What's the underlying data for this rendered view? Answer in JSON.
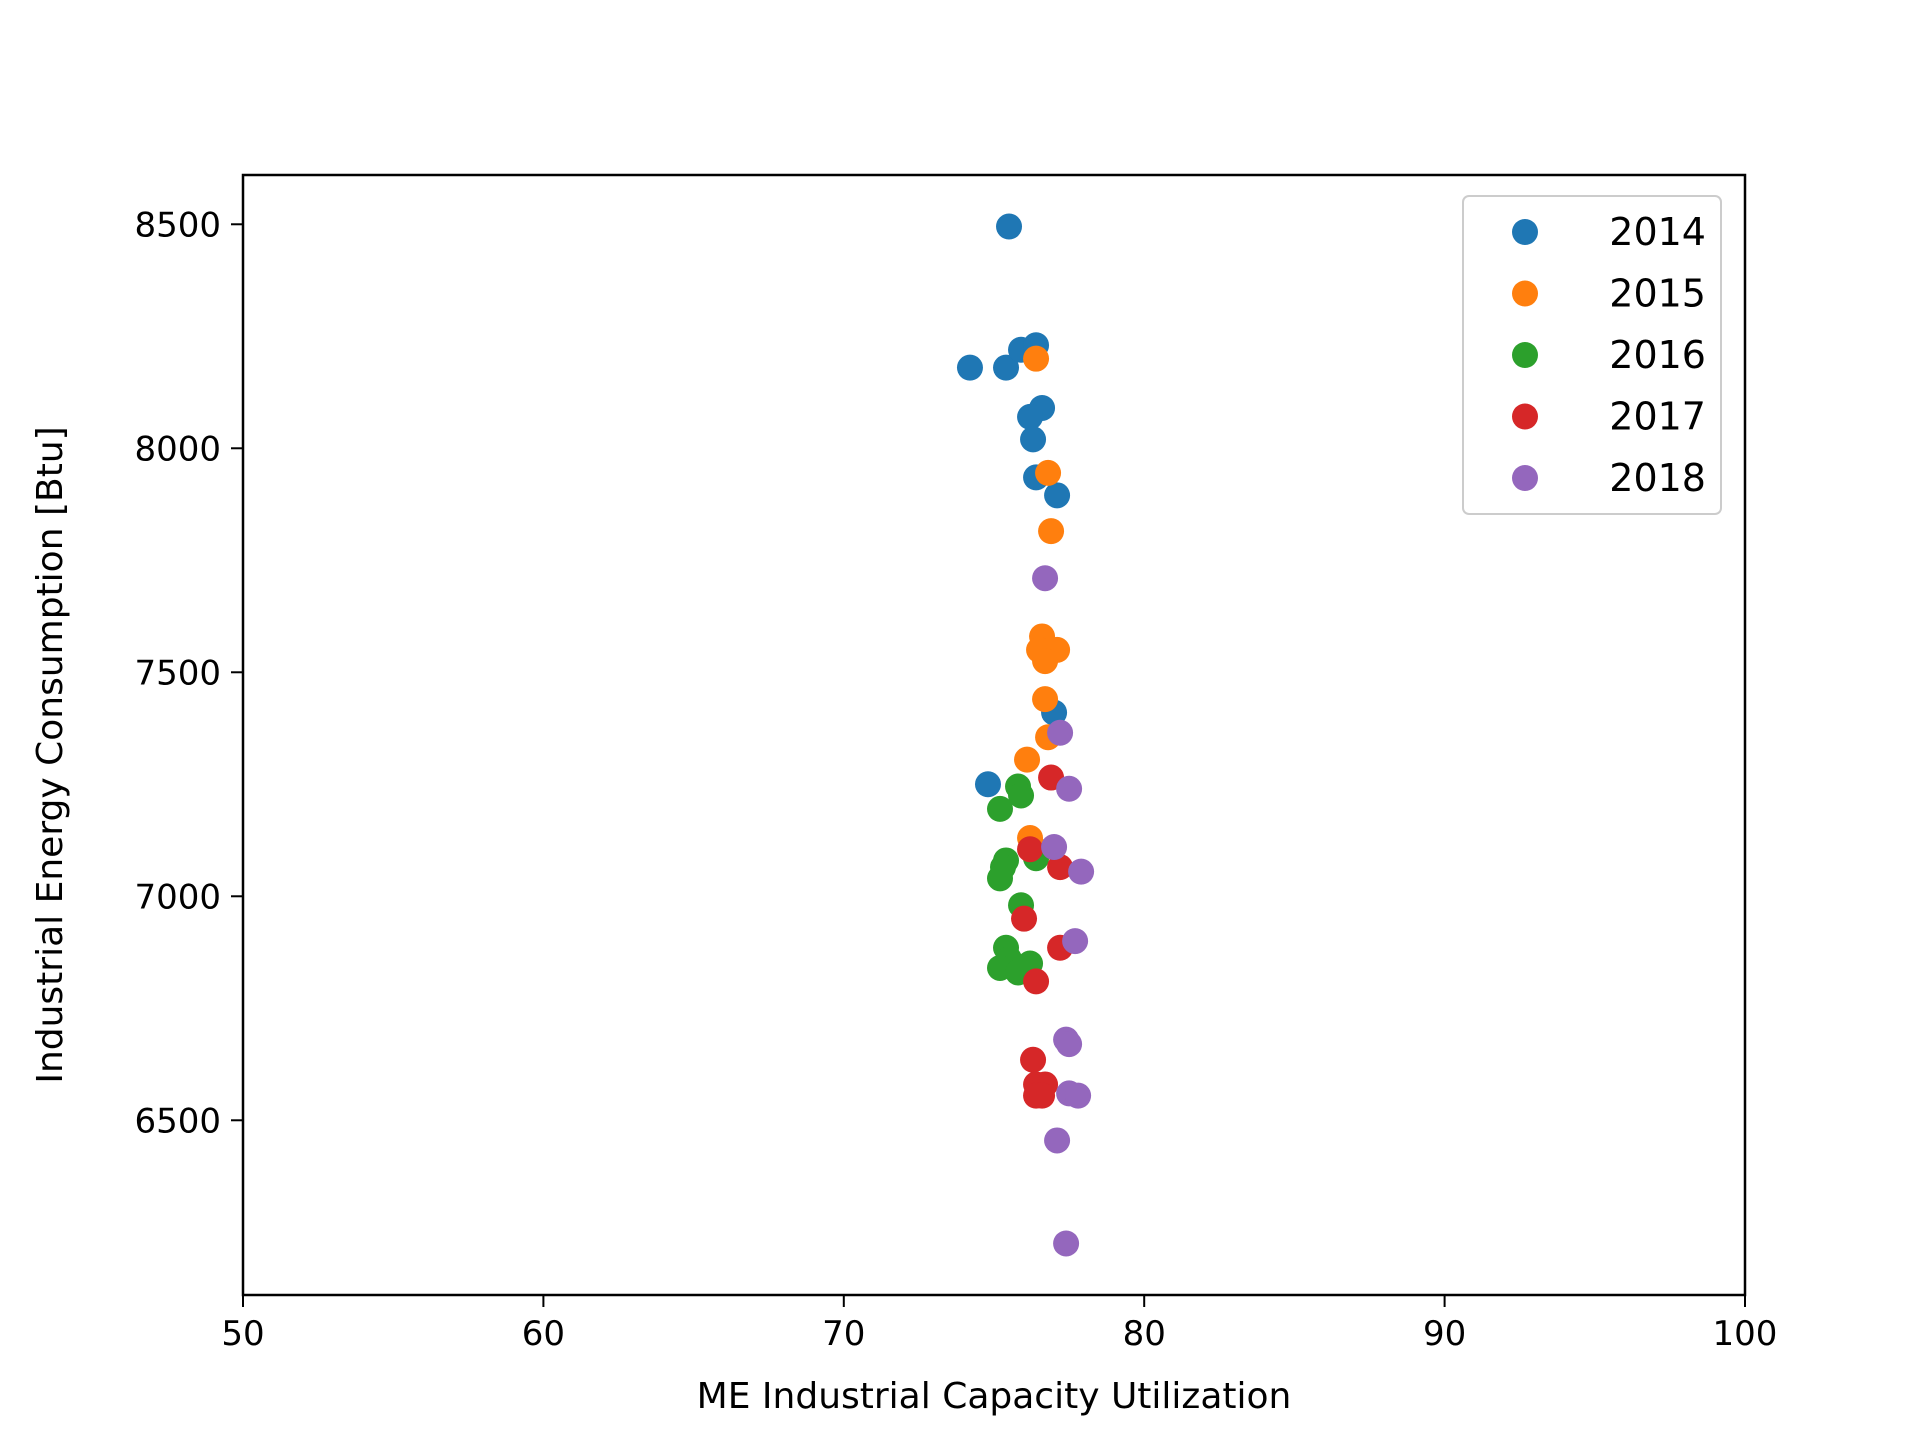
{
  "chart_data": {
    "type": "scatter",
    "title": "",
    "xlabel": "ME Industrial Capacity Utilization",
    "ylabel": "Industrial Energy Consumption [Btu]",
    "xlim": [
      50,
      100
    ],
    "ylim": [
      6110,
      8610
    ],
    "xticks": [
      50,
      60,
      70,
      80,
      90,
      100
    ],
    "yticks": [
      6500,
      7000,
      7500,
      8000,
      8500
    ],
    "grid": false,
    "legend_position": "top-right",
    "series": [
      {
        "name": "2014",
        "color": "#1f77b4",
        "points": [
          [
            75.5,
            8495
          ],
          [
            74.2,
            8180
          ],
          [
            75.4,
            8180
          ],
          [
            75.9,
            8220
          ],
          [
            76.4,
            8230
          ],
          [
            76.6,
            8090
          ],
          [
            76.2,
            8070
          ],
          [
            76.3,
            8020
          ],
          [
            76.4,
            7935
          ],
          [
            77.1,
            7895
          ],
          [
            77.0,
            7410
          ],
          [
            74.8,
            7250
          ]
        ]
      },
      {
        "name": "2015",
        "color": "#ff7f0e",
        "points": [
          [
            76.4,
            8200
          ],
          [
            76.8,
            7945
          ],
          [
            76.9,
            7815
          ],
          [
            76.6,
            7580
          ],
          [
            76.5,
            7550
          ],
          [
            77.1,
            7550
          ],
          [
            76.7,
            7525
          ],
          [
            76.7,
            7440
          ],
          [
            76.8,
            7355
          ],
          [
            76.1,
            7305
          ],
          [
            76.2,
            7130
          ],
          [
            76.5,
            7100
          ]
        ]
      },
      {
        "name": "2016",
        "color": "#2ca02c",
        "points": [
          [
            75.8,
            7245
          ],
          [
            75.9,
            7225
          ],
          [
            75.2,
            7195
          ],
          [
            75.4,
            7080
          ],
          [
            75.3,
            7065
          ],
          [
            75.2,
            7040
          ],
          [
            76.4,
            7085
          ],
          [
            75.9,
            6980
          ],
          [
            75.4,
            6885
          ],
          [
            75.5,
            6860
          ],
          [
            75.2,
            6840
          ],
          [
            75.8,
            6830
          ],
          [
            76.2,
            6850
          ]
        ]
      },
      {
        "name": "2017",
        "color": "#d62728",
        "points": [
          [
            76.9,
            7265
          ],
          [
            76.2,
            7105
          ],
          [
            77.2,
            7065
          ],
          [
            76.0,
            6950
          ],
          [
            77.2,
            6885
          ],
          [
            76.4,
            6810
          ],
          [
            76.3,
            6635
          ],
          [
            76.4,
            6580
          ],
          [
            76.7,
            6580
          ],
          [
            76.4,
            6555
          ],
          [
            76.6,
            6555
          ]
        ]
      },
      {
        "name": "2018",
        "color": "#9467bd",
        "points": [
          [
            76.7,
            7710
          ],
          [
            77.2,
            7365
          ],
          [
            77.5,
            7240
          ],
          [
            77.0,
            7110
          ],
          [
            77.9,
            7055
          ],
          [
            77.7,
            6900
          ],
          [
            77.4,
            6680
          ],
          [
            77.5,
            6670
          ],
          [
            77.5,
            6560
          ],
          [
            77.8,
            6555
          ],
          [
            77.1,
            6455
          ],
          [
            77.4,
            6225
          ]
        ]
      }
    ]
  }
}
